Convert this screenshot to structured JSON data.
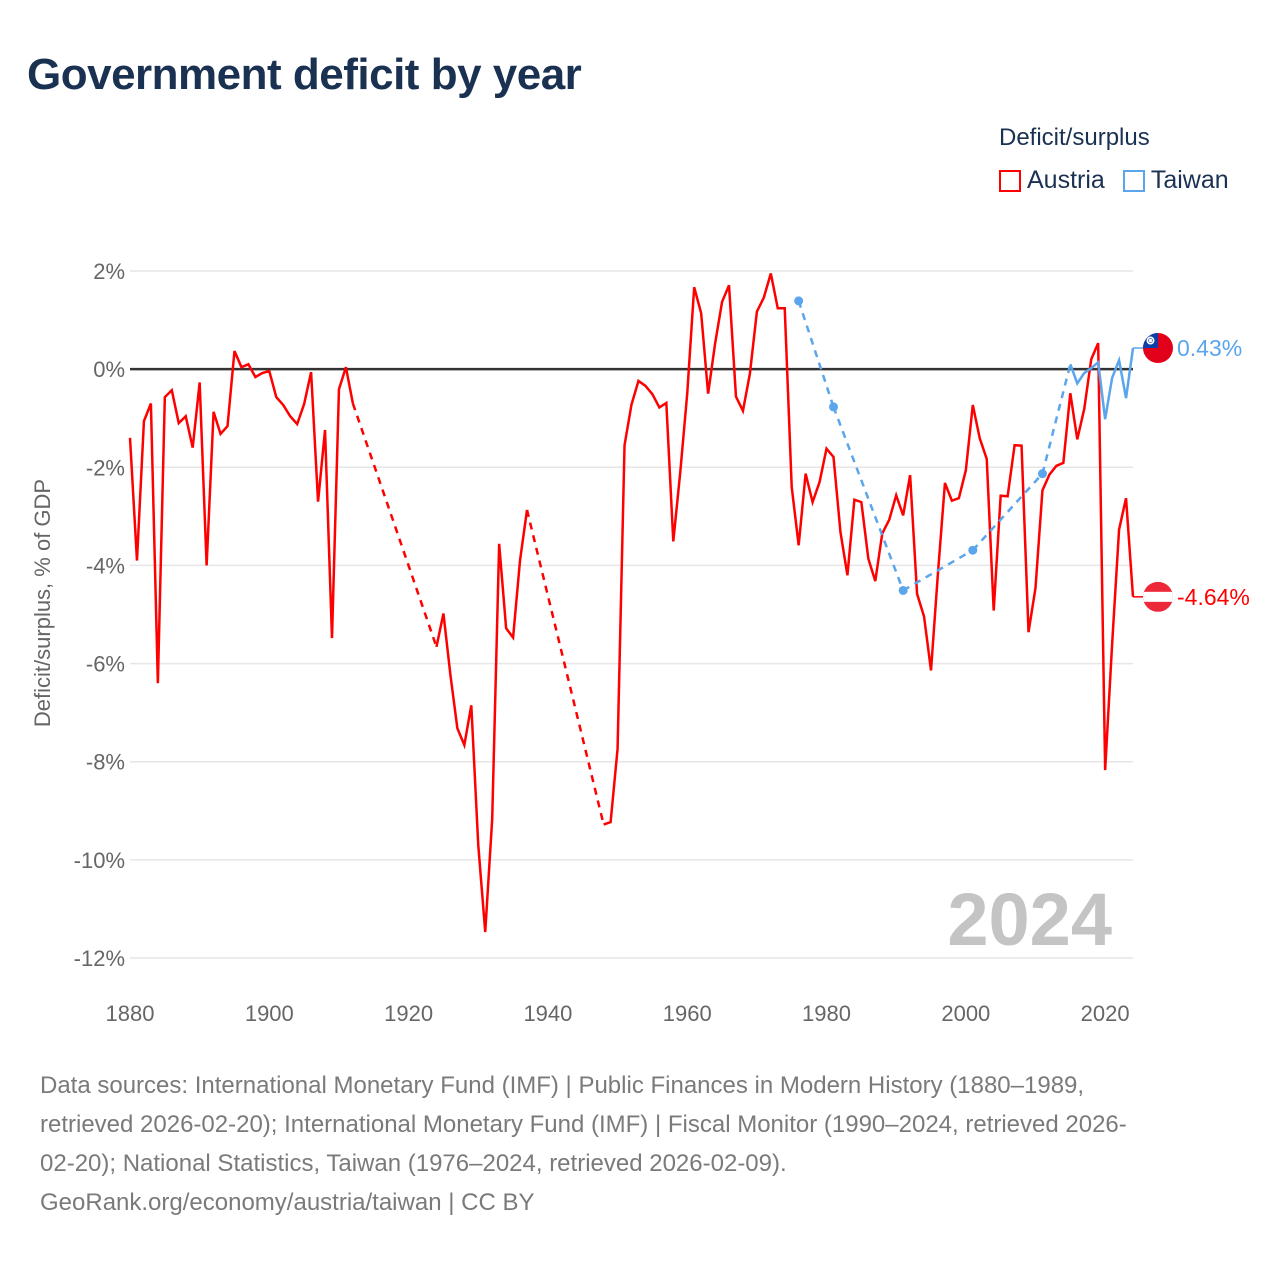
{
  "title": "Government deficit by year",
  "legend": {
    "title": "Deficit/surplus",
    "items": [
      {
        "name": "Austria",
        "color": "#ff0000"
      },
      {
        "name": "Taiwan",
        "color": "#5aa5ec"
      }
    ]
  },
  "chart_data": {
    "type": "line",
    "title": "Government deficit by year",
    "xlabel": "",
    "ylabel": "Deficit/surplus, % of GDP",
    "xlim": [
      1880,
      2024
    ],
    "ylim": [
      -12,
      2
    ],
    "x_ticks": [
      1880,
      1900,
      1920,
      1940,
      1960,
      1980,
      2000,
      2020
    ],
    "y_ticks": [
      2,
      0,
      -2,
      -4,
      -6,
      -8,
      -10,
      -12
    ],
    "y_tick_labels": [
      "2%",
      "0%",
      "-2%",
      "-4%",
      "-6%",
      "-8%",
      "-10%",
      "-12%"
    ],
    "x_tick_labels": [
      "1880",
      "1900",
      "1920",
      "1940",
      "1960",
      "1980",
      "2000",
      "2020"
    ],
    "grid": true,
    "legend_position": "top-right",
    "year_watermark": "2024",
    "series": [
      {
        "name": "Austria",
        "color": "#ff0000",
        "end_label": "-4.64%",
        "flag": "austria-flag",
        "points": [
          [
            1880,
            -1.4
          ],
          [
            1881,
            -3.9
          ],
          [
            1882,
            -1.06
          ],
          [
            1883,
            -0.7
          ],
          [
            1884,
            -6.4
          ],
          [
            1885,
            -0.57
          ],
          [
            1886,
            -0.43
          ],
          [
            1887,
            -1.1
          ],
          [
            1888,
            -0.96
          ],
          [
            1889,
            -1.6
          ],
          [
            1890,
            -0.27
          ],
          [
            1891,
            -4.0
          ],
          [
            1892,
            -0.87
          ],
          [
            1893,
            -1.32
          ],
          [
            1894,
            -1.16
          ],
          [
            1895,
            0.37
          ],
          [
            1896,
            0.04
          ],
          [
            1897,
            0.1
          ],
          [
            1898,
            -0.16
          ],
          [
            1899,
            -0.08
          ],
          [
            1900,
            -0.04
          ],
          [
            1901,
            -0.57
          ],
          [
            1902,
            -0.73
          ],
          [
            1903,
            -0.96
          ],
          [
            1904,
            -1.12
          ],
          [
            1905,
            -0.71
          ],
          [
            1906,
            -0.06
          ],
          [
            1907,
            -2.7
          ],
          [
            1908,
            -1.24
          ],
          [
            1909,
            -5.48
          ],
          [
            1910,
            -0.41
          ],
          [
            1911,
            0.04
          ],
          [
            1912,
            -0.7
          ],
          [
            1924,
            -5.66
          ],
          [
            1925,
            -4.98
          ],
          [
            1926,
            -6.23
          ],
          [
            1927,
            -7.32
          ],
          [
            1928,
            -7.66
          ],
          [
            1929,
            -6.85
          ],
          [
            1930,
            -9.7
          ],
          [
            1931,
            -11.47
          ],
          [
            1932,
            -9.17
          ],
          [
            1933,
            -3.56
          ],
          [
            1934,
            -5.28
          ],
          [
            1935,
            -5.47
          ],
          [
            1936,
            -3.89
          ],
          [
            1937,
            -2.87
          ],
          [
            1948,
            -9.28
          ],
          [
            1949,
            -9.23
          ],
          [
            1950,
            -7.74
          ],
          [
            1951,
            -1.55
          ],
          [
            1952,
            -0.72
          ],
          [
            1953,
            -0.24
          ],
          [
            1954,
            -0.34
          ],
          [
            1955,
            -0.51
          ],
          [
            1956,
            -0.78
          ],
          [
            1957,
            -0.69
          ],
          [
            1958,
            -3.51
          ],
          [
            1959,
            -2.1
          ],
          [
            1960,
            -0.5
          ],
          [
            1961,
            1.67
          ],
          [
            1962,
            1.14
          ],
          [
            1963,
            -0.5
          ],
          [
            1964,
            0.52
          ],
          [
            1965,
            1.37
          ],
          [
            1966,
            1.71
          ],
          [
            1967,
            -0.56
          ],
          [
            1968,
            -0.85
          ],
          [
            1969,
            -0.09
          ],
          [
            1970,
            1.17
          ],
          [
            1971,
            1.46
          ],
          [
            1972,
            1.95
          ],
          [
            1973,
            1.24
          ],
          [
            1974,
            1.24
          ],
          [
            1975,
            -2.4
          ],
          [
            1976,
            -3.59
          ],
          [
            1977,
            -2.13
          ],
          [
            1978,
            -2.71
          ],
          [
            1979,
            -2.3
          ],
          [
            1980,
            -1.62
          ],
          [
            1981,
            -1.79
          ],
          [
            1982,
            -3.32
          ],
          [
            1983,
            -4.2
          ],
          [
            1984,
            -2.66
          ],
          [
            1985,
            -2.71
          ],
          [
            1986,
            -3.86
          ],
          [
            1987,
            -4.32
          ],
          [
            1988,
            -3.35
          ],
          [
            1989,
            -3.07
          ],
          [
            1990,
            -2.57
          ],
          [
            1991,
            -2.98
          ],
          [
            1992,
            -2.16
          ],
          [
            1993,
            -4.58
          ],
          [
            1994,
            -5.04
          ],
          [
            1995,
            -6.14
          ],
          [
            1996,
            -4.15
          ],
          [
            1997,
            -2.32
          ],
          [
            1998,
            -2.68
          ],
          [
            1999,
            -2.63
          ],
          [
            2000,
            -2.06
          ],
          [
            2001,
            -0.73
          ],
          [
            2002,
            -1.41
          ],
          [
            2003,
            -1.83
          ],
          [
            2004,
            -4.92
          ],
          [
            2005,
            -2.58
          ],
          [
            2006,
            -2.59
          ],
          [
            2007,
            -1.55
          ],
          [
            2008,
            -1.56
          ],
          [
            2009,
            -5.36
          ],
          [
            2010,
            -4.46
          ],
          [
            2011,
            -2.47
          ],
          [
            2012,
            -2.15
          ],
          [
            2013,
            -1.97
          ],
          [
            2014,
            -1.91
          ],
          [
            2015,
            -0.49
          ],
          [
            2016,
            -1.43
          ],
          [
            2017,
            -0.81
          ],
          [
            2018,
            0.2
          ],
          [
            2019,
            0.53
          ],
          [
            2020,
            -8.17
          ],
          [
            2021,
            -5.61
          ],
          [
            2022,
            -3.27
          ],
          [
            2023,
            -2.63
          ],
          [
            2024,
            -4.64
          ]
        ]
      },
      {
        "name": "Taiwan",
        "color": "#5aa5ec",
        "end_label": "0.43%",
        "flag": "taiwan-flag",
        "points": [
          [
            1976,
            1.39
          ],
          [
            1981,
            -0.77
          ],
          [
            1991,
            -4.51
          ],
          [
            2001,
            -3.69
          ],
          [
            2011,
            -2.13
          ],
          [
            2015,
            0.1
          ],
          [
            2016,
            -0.29
          ],
          [
            2017,
            -0.08
          ],
          [
            2018,
            0.02
          ],
          [
            2019,
            0.14
          ],
          [
            2020,
            -1.02
          ],
          [
            2021,
            -0.18
          ],
          [
            2022,
            0.18
          ],
          [
            2023,
            -0.59
          ],
          [
            2024,
            0.43
          ]
        ]
      }
    ]
  },
  "footer": {
    "lines": [
      "Data sources: International Monetary Fund (IMF) | Public Finances in Modern History (1880–1989,",
      "retrieved 2026-02-20); International Monetary Fund (IMF) | Fiscal Monitor (1990–2024, retrieved 2026-",
      "02-20); National Statistics, Taiwan (1976–2024, retrieved 2026-02-09).",
      "GeoRank.org/economy/austria/taiwan | CC BY"
    ]
  }
}
